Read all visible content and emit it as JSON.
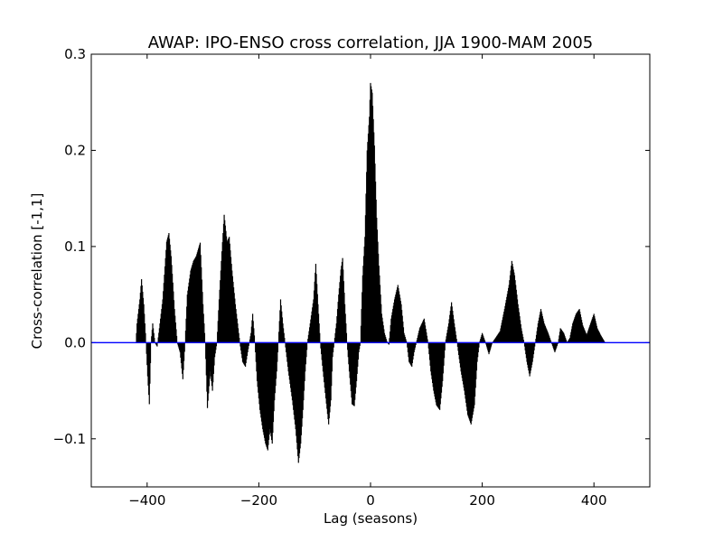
{
  "chart_data": {
    "type": "bar",
    "title": "AWAP: IPO-ENSO cross correlation, JJA 1900-MAM 2005",
    "xlabel": "Lag (seasons)",
    "ylabel": "Cross-correlation [-1,1]",
    "xlim": [
      -500,
      500
    ],
    "ylim": [
      -0.15,
      0.3
    ],
    "xticks": [
      -400,
      -200,
      0,
      200,
      400
    ],
    "xtick_labels": [
      "−400",
      "−200",
      "0",
      "200",
      "400"
    ],
    "yticks": [
      -0.1,
      0.0,
      0.1,
      0.2,
      0.3
    ],
    "ytick_labels": [
      "−0.1",
      "0.0",
      "0.1",
      "0.2",
      "0.3"
    ],
    "grid": false,
    "bar_color": "#000000",
    "zero_line_color": "#0000ff",
    "lag_range": [
      -420,
      420
    ],
    "profile": [
      [
        -420,
        0.0
      ],
      [
        -418,
        0.02
      ],
      [
        -413,
        0.045
      ],
      [
        -410,
        0.066
      ],
      [
        -406,
        0.04
      ],
      [
        -402,
        0.0
      ],
      [
        -399,
        -0.035
      ],
      [
        -396,
        -0.064
      ],
      [
        -393,
        0.0
      ],
      [
        -390,
        0.02
      ],
      [
        -386,
        0.0
      ],
      [
        -382,
        -0.004
      ],
      [
        -378,
        0.015
      ],
      [
        -372,
        0.045
      ],
      [
        -365,
        0.105
      ],
      [
        -361,
        0.114
      ],
      [
        -357,
        0.09
      ],
      [
        -351,
        0.035
      ],
      [
        -346,
        0.0
      ],
      [
        -341,
        -0.01
      ],
      [
        -336,
        -0.038
      ],
      [
        -332,
        0.0
      ],
      [
        -328,
        0.05
      ],
      [
        -322,
        0.075
      ],
      [
        -317,
        0.085
      ],
      [
        -312,
        0.09
      ],
      [
        -307,
        0.1
      ],
      [
        -305,
        0.104
      ],
      [
        -300,
        0.04
      ],
      [
        -296,
        0.0
      ],
      [
        -292,
        -0.068
      ],
      [
        -287,
        -0.03
      ],
      [
        -283,
        -0.05
      ],
      [
        -279,
        -0.015
      ],
      [
        -275,
        0.0
      ],
      [
        -271,
        0.045
      ],
      [
        -266,
        0.095
      ],
      [
        -262,
        0.133
      ],
      [
        -257,
        0.105
      ],
      [
        -253,
        0.11
      ],
      [
        -248,
        0.075
      ],
      [
        -242,
        0.04
      ],
      [
        -238,
        0.02
      ],
      [
        -234,
        0.0
      ],
      [
        -229,
        -0.02
      ],
      [
        -224,
        -0.025
      ],
      [
        -220,
        -0.01
      ],
      [
        -217,
        0.0
      ],
      [
        -214,
        0.01
      ],
      [
        -211,
        0.03
      ],
      [
        -207,
        0.0
      ],
      [
        -203,
        -0.04
      ],
      [
        -198,
        -0.07
      ],
      [
        -193,
        -0.09
      ],
      [
        -188,
        -0.105
      ],
      [
        -184,
        -0.112
      ],
      [
        -180,
        -0.09
      ],
      [
        -176,
        -0.105
      ],
      [
        -172,
        -0.06
      ],
      [
        -168,
        -0.03
      ],
      [
        -165,
        0.0
      ],
      [
        -161,
        0.045
      ],
      [
        -157,
        0.02
      ],
      [
        -153,
        0.0
      ],
      [
        -147,
        -0.03
      ],
      [
        -140,
        -0.06
      ],
      [
        -134,
        -0.09
      ],
      [
        -129,
        -0.125
      ],
      [
        -125,
        -0.105
      ],
      [
        -121,
        -0.07
      ],
      [
        -117,
        -0.03
      ],
      [
        -113,
        0.0
      ],
      [
        -108,
        0.02
      ],
      [
        -102,
        0.045
      ],
      [
        -98,
        0.082
      ],
      [
        -94,
        0.04
      ],
      [
        -90,
        0.0
      ],
      [
        -85,
        -0.03
      ],
      [
        -80,
        -0.058
      ],
      [
        -75,
        -0.085
      ],
      [
        -71,
        -0.06
      ],
      [
        -68,
        -0.015
      ],
      [
        -65,
        0.0
      ],
      [
        -61,
        0.02
      ],
      [
        -57,
        0.05
      ],
      [
        -53,
        0.076
      ],
      [
        -50,
        0.088
      ],
      [
        -46,
        0.04
      ],
      [
        -42,
        0.0
      ],
      [
        -38,
        -0.03
      ],
      [
        -33,
        -0.064
      ],
      [
        -29,
        -0.066
      ],
      [
        -25,
        -0.04
      ],
      [
        -21,
        -0.01
      ],
      [
        -18,
        0.0
      ],
      [
        -14,
        0.07
      ],
      [
        -10,
        0.11
      ],
      [
        -6,
        0.2
      ],
      [
        -2,
        0.235
      ],
      [
        0,
        0.27
      ],
      [
        3,
        0.26
      ],
      [
        7,
        0.205
      ],
      [
        11,
        0.13
      ],
      [
        15,
        0.08
      ],
      [
        20,
        0.03
      ],
      [
        25,
        0.01
      ],
      [
        30,
        0.0
      ],
      [
        33,
        -0.002
      ],
      [
        37,
        0.025
      ],
      [
        43,
        0.045
      ],
      [
        49,
        0.06
      ],
      [
        55,
        0.04
      ],
      [
        60,
        0.01
      ],
      [
        65,
        0.0
      ],
      [
        69,
        -0.02
      ],
      [
        74,
        -0.025
      ],
      [
        78,
        -0.01
      ],
      [
        82,
        0.0
      ],
      [
        88,
        0.015
      ],
      [
        96,
        0.025
      ],
      [
        103,
        0.0
      ],
      [
        108,
        -0.03
      ],
      [
        113,
        -0.05
      ],
      [
        118,
        -0.065
      ],
      [
        124,
        -0.07
      ],
      [
        129,
        -0.04
      ],
      [
        134,
        0.0
      ],
      [
        140,
        0.02
      ],
      [
        145,
        0.042
      ],
      [
        150,
        0.02
      ],
      [
        155,
        0.0
      ],
      [
        162,
        -0.03
      ],
      [
        168,
        -0.05
      ],
      [
        174,
        -0.075
      ],
      [
        180,
        -0.085
      ],
      [
        186,
        -0.065
      ],
      [
        191,
        -0.02
      ],
      [
        195,
        0.0
      ],
      [
        200,
        0.01
      ],
      [
        206,
        0.0
      ],
      [
        212,
        -0.012
      ],
      [
        218,
        0.0
      ],
      [
        224,
        0.005
      ],
      [
        232,
        0.012
      ],
      [
        240,
        0.035
      ],
      [
        248,
        0.06
      ],
      [
        253,
        0.085
      ],
      [
        258,
        0.07
      ],
      [
        264,
        0.04
      ],
      [
        270,
        0.015
      ],
      [
        275,
        0.0
      ],
      [
        280,
        -0.02
      ],
      [
        285,
        -0.035
      ],
      [
        290,
        -0.02
      ],
      [
        295,
        0.0
      ],
      [
        300,
        0.02
      ],
      [
        305,
        0.035
      ],
      [
        311,
        0.02
      ],
      [
        318,
        0.01
      ],
      [
        324,
        0.0
      ],
      [
        330,
        -0.01
      ],
      [
        336,
        0.0
      ],
      [
        340,
        0.015
      ],
      [
        346,
        0.01
      ],
      [
        352,
        0.0
      ],
      [
        357,
        0.005
      ],
      [
        362,
        0.02
      ],
      [
        368,
        0.03
      ],
      [
        374,
        0.035
      ],
      [
        380,
        0.018
      ],
      [
        387,
        0.008
      ],
      [
        394,
        0.02
      ],
      [
        400,
        0.03
      ],
      [
        406,
        0.015
      ],
      [
        412,
        0.008
      ],
      [
        420,
        0.0
      ]
    ]
  }
}
